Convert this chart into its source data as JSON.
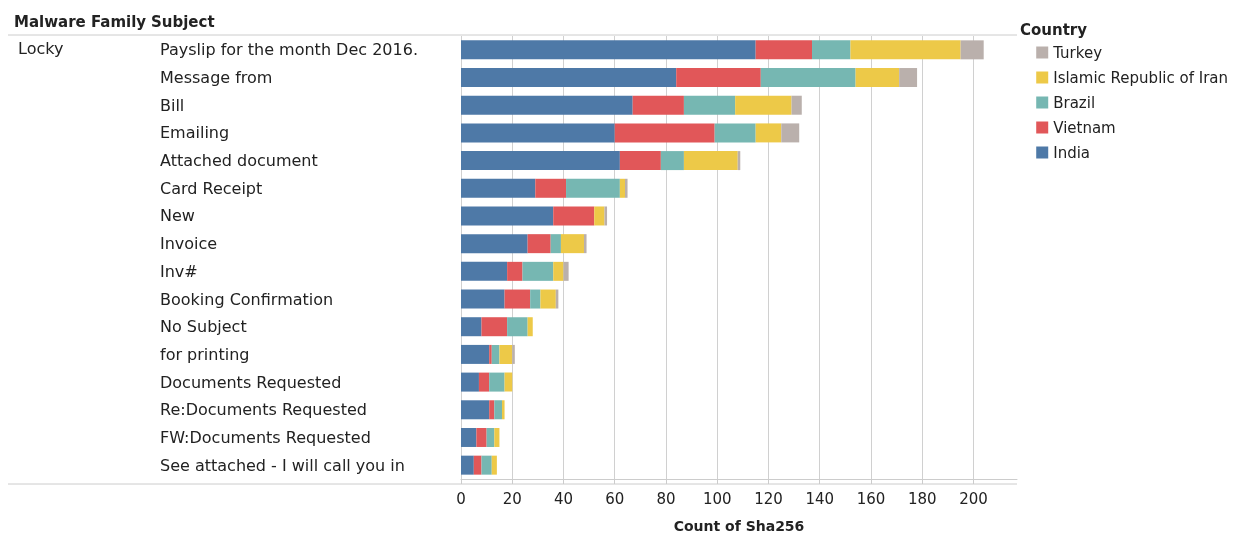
{
  "chart_data": {
    "type": "bar",
    "orientation": "horizontal",
    "stacked": true,
    "xlabel": "Count of Sha256",
    "ylabel": "Subject",
    "legend_title": "Country",
    "annotations": [
      "Malware Family",
      "Locky"
    ],
    "categories": [
      "Payslip for the month Dec 2016.",
      "Message from",
      "Bill",
      "Emailing",
      "Attached document",
      "Card Receipt",
      "New",
      "Invoice",
      "Inv#",
      "Booking Confirmation",
      "No Subject",
      "for printing",
      "Documents Requested",
      "Re:Documents Requested",
      "FW:Documents Requested",
      "See attached - I will call you in"
    ],
    "series": [
      {
        "name": "India",
        "color": "#4e79a7",
        "values": [
          115,
          84,
          67,
          60,
          62,
          29,
          36,
          26,
          18,
          17,
          8,
          11,
          7,
          11,
          6,
          5
        ]
      },
      {
        "name": "Vietnam",
        "color": "#e15759",
        "values": [
          22,
          33,
          20,
          39,
          16,
          12,
          16,
          9,
          6,
          10,
          10,
          1,
          4,
          2,
          4,
          3
        ]
      },
      {
        "name": "Brazil",
        "color": "#76b7b2",
        "values": [
          15,
          37,
          20,
          16,
          9,
          21,
          0,
          4,
          12,
          4,
          8,
          3,
          6,
          3,
          3,
          4
        ]
      },
      {
        "name": "Islamic Republic of Iran",
        "color": "#edc948",
        "values": [
          43,
          17,
          22,
          10,
          21,
          2,
          4,
          9,
          4,
          6,
          2,
          5,
          3,
          1,
          2,
          2
        ]
      },
      {
        "name": "Turkey",
        "color": "#bab0ac",
        "values": [
          9,
          7,
          4,
          7,
          1,
          1,
          1,
          1,
          2,
          1,
          0,
          1,
          0,
          0,
          0,
          0
        ]
      }
    ],
    "xlim": [
      0,
      217
    ],
    "xticks": [
      0,
      20,
      40,
      60,
      80,
      100,
      120,
      140,
      160,
      180,
      200
    ],
    "grid": "x",
    "legend": "top right"
  }
}
